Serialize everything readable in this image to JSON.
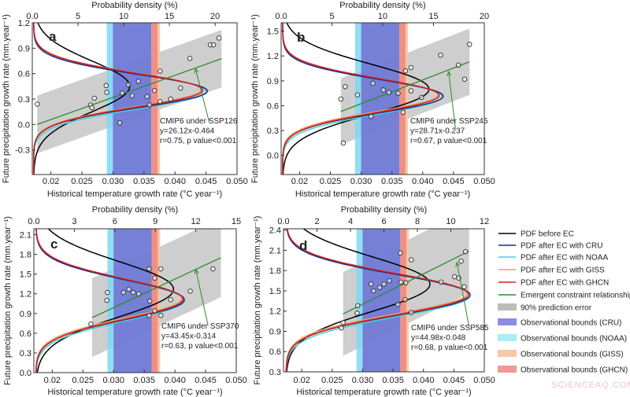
{
  "chart_data": [
    {
      "type": "scatter",
      "panel": "a",
      "xlabel": "Historical temperature growth rate (°C year⁻¹)",
      "ylabel": "Future precipitation growth rate (mm.year⁻¹)",
      "top_xlabel": "Probability density (%)",
      "xlim": [
        0.017,
        0.05
      ],
      "ylim": [
        -0.59,
        1.2
      ],
      "prob_lim": [
        0,
        22.4
      ],
      "xticks": [
        "0.02",
        "0.025",
        "0.030",
        "0.035",
        "0.040",
        "0.045",
        "0.050"
      ],
      "yticks": [
        "1.2",
        "0.9",
        "0.6",
        "0.3",
        "0.0",
        "-0.3"
      ],
      "prob_ticks": [
        "0.0",
        "5",
        "10",
        "15",
        "20"
      ],
      "annotation": [
        "CMIP6 under SSP126",
        "y=26.12x-0.464",
        "r=0.75, p value<0.001"
      ],
      "fit": {
        "slope": 26.12,
        "intercept": -0.464,
        "x_range": [
          0.0178,
          0.0475
        ],
        "band_halfwidth": 0.34
      },
      "arrow": {
        "from": [
          0.0455,
          0.03
        ],
        "to": [
          0.0433,
          0.66
        ]
      },
      "points": [
        [
          0.0178,
          0.24
        ],
        [
          0.0264,
          0.23
        ],
        [
          0.0266,
          0.2
        ],
        [
          0.027,
          0.31
        ],
        [
          0.0289,
          0.46
        ],
        [
          0.029,
          0.38
        ],
        [
          0.0315,
          0.37
        ],
        [
          0.0311,
          0.02
        ],
        [
          0.0325,
          0.47
        ],
        [
          0.0331,
          0.34
        ],
        [
          0.0341,
          0.51
        ],
        [
          0.0355,
          0.33
        ],
        [
          0.0359,
          0.23
        ],
        [
          0.0367,
          0.4
        ],
        [
          0.0376,
          0.63
        ],
        [
          0.0376,
          0.27
        ],
        [
          0.0393,
          0.3
        ],
        [
          0.0409,
          0.43
        ],
        [
          0.0424,
          0.78
        ],
        [
          0.0457,
          0.94
        ],
        [
          0.0462,
          0.94
        ],
        [
          0.0471,
          1.02
        ]
      ],
      "pdfs": [
        {
          "name": "before",
          "mu": 0.45,
          "sd": 0.3,
          "peak": 10.5
        },
        {
          "name": "NOAA",
          "mu": 0.39,
          "sd": 0.205,
          "peak": 18.9
        },
        {
          "name": "GISS",
          "mu": 0.41,
          "sd": 0.2,
          "peak": 18.3
        },
        {
          "name": "CRU",
          "mu": 0.395,
          "sd": 0.195,
          "peak": 19.0
        },
        {
          "name": "GHCN",
          "mu": 0.405,
          "sd": 0.2,
          "peak": 18.5
        }
      ]
    },
    {
      "type": "scatter",
      "panel": "b",
      "xlabel": "Historical temperature growth rate (°C year⁻¹)",
      "ylabel": "Future precipitation growth rate (mm.year⁻¹)",
      "top_xlabel": "Probability density (%)",
      "xlim": [
        0.017,
        0.05
      ],
      "ylim": [
        -0.23,
        1.6
      ],
      "prob_lim": [
        0,
        20
      ],
      "xticks": [
        "0.02",
        "0.025",
        "0.030",
        "0.035",
        "0.040",
        "0.045",
        "0.050"
      ],
      "yticks": [
        "1.5",
        "1.2",
        "0.9",
        "0.6",
        "0.3",
        "0.0"
      ],
      "prob_ticks": [
        "0.0",
        "5",
        "10",
        "15",
        "20"
      ],
      "annotation": [
        "CMIP6 under SSP245",
        "y=28.71x-0.237",
        "r=0.67, p value<0.001"
      ],
      "fit": {
        "slope": 28.71,
        "intercept": -0.237,
        "x_range": [
          0.0267,
          0.0476
        ],
        "band_halfwidth": 0.4
      },
      "arrow": {
        "from": [
          0.0453,
          0.33
        ],
        "to": [
          0.0442,
          1.01
        ]
      },
      "points": [
        [
          0.0267,
          0.68
        ],
        [
          0.0274,
          0.83
        ],
        [
          0.0294,
          0.73
        ],
        [
          0.0271,
          0.15
        ],
        [
          0.0319,
          0.87
        ],
        [
          0.0316,
          0.47
        ],
        [
          0.0336,
          0.79
        ],
        [
          0.0345,
          0.76
        ],
        [
          0.036,
          0.75
        ],
        [
          0.0368,
          0.52
        ],
        [
          0.0372,
          1.02
        ],
        [
          0.0381,
          1.06
        ],
        [
          0.0381,
          0.78
        ],
        [
          0.0398,
          0.7
        ],
        [
          0.0429,
          1.21
        ],
        [
          0.0458,
          1.09
        ],
        [
          0.0468,
          0.92
        ],
        [
          0.0476,
          1.34
        ]
      ],
      "pdfs": [
        {
          "name": "before",
          "mu": 0.8,
          "sd": 0.3,
          "peak": 14.4
        },
        {
          "name": "NOAA",
          "mu": 0.71,
          "sd": 0.21,
          "peak": 15.7
        },
        {
          "name": "GISS",
          "mu": 0.73,
          "sd": 0.2,
          "peak": 15.3
        },
        {
          "name": "CRU",
          "mu": 0.715,
          "sd": 0.2,
          "peak": 15.8
        },
        {
          "name": "GHCN",
          "mu": 0.725,
          "sd": 0.205,
          "peak": 15.4
        }
      ]
    },
    {
      "type": "scatter",
      "panel": "c",
      "xlabel": "Historical temperature growth rate (°C year⁻¹)",
      "ylabel": "Future precipitation growth rate (mm.year⁻¹)",
      "top_xlabel": "Probability density (%)",
      "xlim": [
        0.017,
        0.05
      ],
      "ylim": [
        0,
        2.19
      ],
      "prob_lim": [
        0,
        15
      ],
      "xticks": [
        "0.02",
        "0.025",
        "0.030",
        "0.035",
        "0.040",
        "0.045",
        "0.050"
      ],
      "yticks": [
        "2.1",
        "1.8",
        "1.5",
        "1.2",
        "0.9",
        "0.6",
        "0.3",
        "0.0"
      ],
      "prob_ticks": [
        "0.0",
        "3",
        "6",
        "9",
        "12",
        "15"
      ],
      "annotation": [
        "CMIP6 under SSP370",
        "y=43.45x-0.314",
        "r=0.63, p value<0.001"
      ],
      "fit": {
        "slope": 43.45,
        "intercept": -0.314,
        "x_range": [
          0.0265,
          0.0475
        ],
        "band_halfwidth": 0.6
      },
      "arrow": {
        "from": [
          0.0454,
          0.72
        ],
        "to": [
          0.0434,
          1.57
        ]
      },
      "points": [
        [
          0.0263,
          0.74
        ],
        [
          0.0289,
          1.1
        ],
        [
          0.029,
          1.22
        ],
        [
          0.0316,
          1.22
        ],
        [
          0.0325,
          1.27
        ],
        [
          0.0332,
          1.22
        ],
        [
          0.0341,
          1.2
        ],
        [
          0.0358,
          1.58
        ],
        [
          0.0358,
          0.87
        ],
        [
          0.0359,
          1.09
        ],
        [
          0.0367,
          0.94
        ],
        [
          0.0367,
          1.44
        ],
        [
          0.0377,
          1.58
        ],
        [
          0.0377,
          0.87
        ],
        [
          0.0393,
          1.11
        ],
        [
          0.0425,
          1.24
        ],
        [
          0.0462,
          1.58
        ]
      ],
      "pdfs": [
        {
          "name": "before",
          "mu": 1.27,
          "sd": 0.42,
          "peak": 10.2
        },
        {
          "name": "NOAA",
          "mu": 1.1,
          "sd": 0.31,
          "peak": 11.0
        },
        {
          "name": "GISS",
          "mu": 1.13,
          "sd": 0.3,
          "peak": 10.8
        },
        {
          "name": "CRU",
          "mu": 1.11,
          "sd": 0.3,
          "peak": 11.0
        },
        {
          "name": "GHCN",
          "mu": 1.12,
          "sd": 0.305,
          "peak": 10.9
        }
      ]
    },
    {
      "type": "scatter",
      "panel": "d",
      "xlabel": "Historical temperature growth rate (°C year⁻¹)",
      "ylabel": "Future precipitation growth rate (mm.year⁻¹)",
      "top_xlabel": "Probability density (%)",
      "xlim": [
        0.017,
        0.05
      ],
      "ylim": [
        0.3,
        2.42
      ],
      "prob_lim": [
        0,
        12
      ],
      "xticks": [
        "0.02",
        "0.025",
        "0.030",
        "0.035",
        "0.040",
        "0.045",
        "0.050"
      ],
      "yticks": [
        "2.4",
        "2.1",
        "1.8",
        "1.5",
        "1.2",
        "0.9",
        "0.6",
        "0.3"
      ],
      "prob_ticks": [
        "0.0",
        "2",
        "4",
        "6",
        "8",
        "10",
        "12"
      ],
      "annotation": [
        "CMIP6 under SSP585",
        "y=44.98x-0.048",
        "r=0.68, p value<0.001"
      ],
      "fit": {
        "slope": 44.98,
        "intercept": -0.048,
        "x_range": [
          0.0268,
          0.0475
        ],
        "band_halfwidth": 0.62
      },
      "arrow": {
        "from": [
          0.0475,
          0.97
        ],
        "to": [
          0.0455,
          1.92
        ]
      },
      "points": [
        [
          0.0265,
          0.95
        ],
        [
          0.0268,
          1.03
        ],
        [
          0.0291,
          1.17
        ],
        [
          0.0292,
          1.28
        ],
        [
          0.0314,
          1.6
        ],
        [
          0.0318,
          1.5
        ],
        [
          0.0328,
          1.55
        ],
        [
          0.0335,
          1.6
        ],
        [
          0.0344,
          1.65
        ],
        [
          0.0358,
          1.3
        ],
        [
          0.0362,
          2.06
        ],
        [
          0.0363,
          1.63
        ],
        [
          0.037,
          1.37
        ],
        [
          0.0371,
          1.62
        ],
        [
          0.038,
          1.96
        ],
        [
          0.038,
          1.18
        ],
        [
          0.0429,
          1.63
        ],
        [
          0.0451,
          1.71
        ],
        [
          0.0458,
          1.69
        ],
        [
          0.0462,
          1.94
        ],
        [
          0.0467,
          1.56
        ],
        [
          0.0469,
          2.08
        ]
      ],
      "pdfs": [
        {
          "name": "before",
          "mu": 1.6,
          "sd": 0.4,
          "peak": 8.6
        },
        {
          "name": "NOAA",
          "mu": 1.43,
          "sd": 0.31,
          "peak": 11.0
        },
        {
          "name": "GISS",
          "mu": 1.46,
          "sd": 0.3,
          "peak": 10.8
        },
        {
          "name": "CRU",
          "mu": 1.44,
          "sd": 0.3,
          "peak": 11.0
        },
        {
          "name": "GHCN",
          "mu": 1.45,
          "sd": 0.305,
          "peak": 10.9
        }
      ]
    }
  ],
  "obs_bounds": {
    "NOAA": [
      0.029,
      0.0362
    ],
    "CRU": [
      0.03,
      0.0362
    ],
    "GISS": [
      0.0362,
      0.0376
    ],
    "GHCN": [
      0.0362,
      0.0372
    ]
  },
  "colors": {
    "before": "#000000",
    "CRU": "#1f2a8a",
    "NOAA": "#3fd3dc",
    "GISS": "#e8a060",
    "GHCN": "#d42020",
    "ec": "#2e8b2e",
    "band": "#bdbdbd",
    "obs_CRU": "#7070d0",
    "obs_NOAA": "#7fd8f5",
    "obs_GISS": "#f5c6a5",
    "obs_GHCN": "#f08a80",
    "legend_CRU": "#8c8ce6",
    "legend_NOAA": "#a8eef2",
    "legend_GISS": "#f5c8a6",
    "legend_GHCN": "#ef9a94"
  },
  "legend": [
    {
      "key": "before",
      "label": "PDF before EC",
      "kind": "line"
    },
    {
      "key": "CRU",
      "label": "PDF after EC with CRU",
      "kind": "line"
    },
    {
      "key": "NOAA",
      "label": "PDF after EC with NOAA",
      "kind": "line"
    },
    {
      "key": "GISS",
      "label": "PDF after EC with GISS",
      "kind": "line"
    },
    {
      "key": "GHCN",
      "label": "PDF after EC with GHCN",
      "kind": "line"
    },
    {
      "key": "ec",
      "label": "Emergent constraint relationship",
      "kind": "line"
    },
    {
      "key": "band",
      "label": "90% prediction error",
      "kind": "box"
    },
    {
      "key": "legend_CRU",
      "label": "Observational bounds (CRU)",
      "kind": "box"
    },
    {
      "key": "legend_NOAA",
      "label": "Observational bounds (NOAA)",
      "kind": "box"
    },
    {
      "key": "legend_GISS",
      "label": "Observational bounds (GISS)",
      "kind": "box"
    },
    {
      "key": "legend_GHCN",
      "label": "Observational bounds (GHCN)",
      "kind": "box"
    }
  ],
  "watermark": "SCIENCEAQ.COM"
}
